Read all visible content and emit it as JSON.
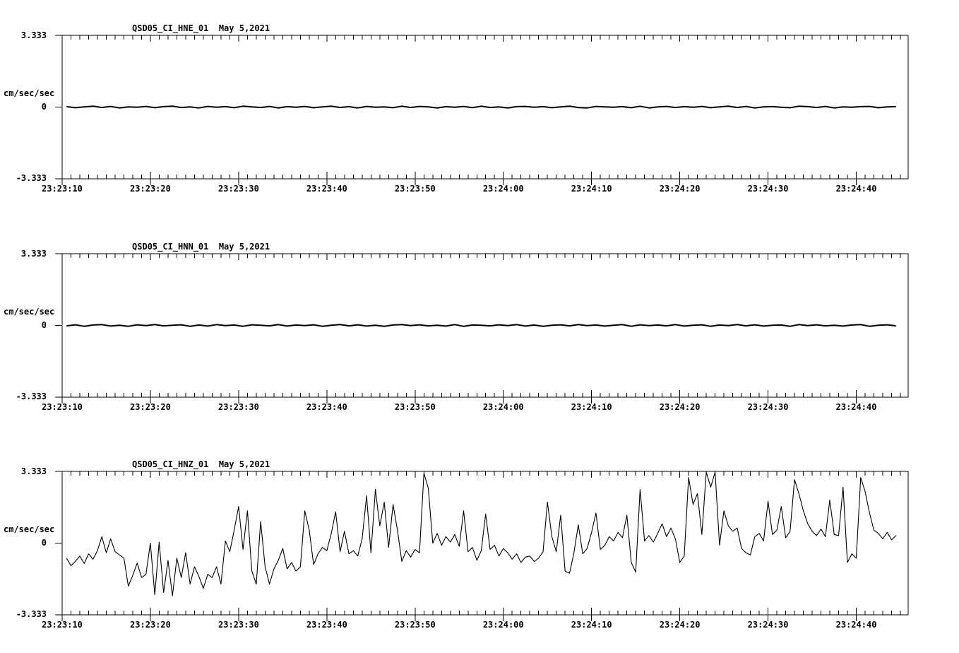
{
  "page": {
    "background": "#ffffff",
    "foreground": "#000000"
  },
  "chart_data": [
    {
      "type": "line",
      "title": "QSD05_CI_HNE_01  May 5,2021",
      "ylabel": "cm/sec/sec",
      "ylim": [
        -3.333,
        3.333
      ],
      "y_ticks": [
        {
          "value": 3.333,
          "label": "3.333"
        },
        {
          "value": 0,
          "label": "0"
        },
        {
          "value": -3.333,
          "label": "-3.333"
        }
      ],
      "xlim_seconds": [
        0,
        95.88
      ],
      "minor_tick_interval_sec": 1,
      "x_ticks": [
        {
          "s": 0,
          "label": "23:23:10"
        },
        {
          "s": 10,
          "label": "23:23:20"
        },
        {
          "s": 20,
          "label": "23:23:30"
        },
        {
          "s": 30,
          "label": "23:23:40"
        },
        {
          "s": 40,
          "label": "23:23:50"
        },
        {
          "s": 50,
          "label": "23:24:00"
        },
        {
          "s": 60,
          "label": "23:24:10"
        },
        {
          "s": 70,
          "label": "23:24:20"
        },
        {
          "s": 80,
          "label": "23:24:30"
        },
        {
          "s": 90,
          "label": "23:24:40"
        }
      ],
      "t_start_sec": 0.5,
      "sample_interval_sec": 1.0,
      "values": [
        0.02,
        -0.03,
        0.01,
        0.04,
        -0.02,
        0.03,
        -0.04,
        0.01,
        -0.01,
        0.03,
        -0.03,
        0.02,
        0.04,
        -0.02,
        0.01,
        -0.04,
        0.03,
        -0.01,
        0.02,
        -0.03,
        0.04,
        0.01,
        -0.02,
        0.03,
        -0.04,
        0.02,
        -0.01,
        0.03,
        -0.03,
        0.01,
        0.04,
        -0.02,
        0.02,
        -0.04,
        0.03,
        -0.01,
        0.01,
        -0.03,
        0.04,
        -0.02,
        0.03,
        0.01,
        -0.04,
        0.02,
        -0.01,
        0.03,
        -0.03,
        0.04,
        -0.02,
        0.01,
        -0.04,
        0.02,
        0.03,
        -0.01,
        0.02,
        -0.03,
        0.01,
        0.04,
        -0.02,
        -0.04,
        0.03,
        0.01,
        -0.01,
        0.02,
        -0.03,
        0.04,
        -0.04,
        0.01,
        0.03,
        -0.02,
        0.02,
        -0.01,
        0.03,
        -0.03,
        0.01,
        0.04,
        -0.02,
        0.03,
        -0.04,
        0.01,
        0.02,
        -0.01,
        -0.03,
        0.04,
        0.02,
        -0.02,
        0.03,
        -0.04,
        0.01,
        -0.01,
        0.02,
        0.03,
        -0.03,
        0.01,
        0.02
      ]
    },
    {
      "type": "line",
      "title": "QSD05_CI_HNN_01  May 5,2021",
      "ylabel": "cm/sec/sec",
      "ylim": [
        -3.333,
        3.333
      ],
      "y_ticks": [
        {
          "value": 3.333,
          "label": "3.333"
        },
        {
          "value": 0,
          "label": "0"
        },
        {
          "value": -3.333,
          "label": "-3.333"
        }
      ],
      "xlim_seconds": [
        0,
        95.88
      ],
      "minor_tick_interval_sec": 1,
      "x_ticks": [
        {
          "s": 0,
          "label": "23:23:10"
        },
        {
          "s": 10,
          "label": "23:23:20"
        },
        {
          "s": 20,
          "label": "23:23:30"
        },
        {
          "s": 30,
          "label": "23:23:40"
        },
        {
          "s": 40,
          "label": "23:23:50"
        },
        {
          "s": 50,
          "label": "23:24:00"
        },
        {
          "s": 60,
          "label": "23:24:10"
        },
        {
          "s": 70,
          "label": "23:24:20"
        },
        {
          "s": 80,
          "label": "23:24:30"
        },
        {
          "s": 90,
          "label": "23:24:40"
        }
      ],
      "t_start_sec": 0.5,
      "sample_interval_sec": 1.0,
      "values": [
        -0.02,
        0.03,
        -0.04,
        0.02,
        0.04,
        -0.03,
        0.01,
        -0.04,
        0.03,
        -0.01,
        0.04,
        -0.02,
        0.01,
        0.03,
        -0.04,
        0.02,
        -0.03,
        0.04,
        -0.01,
        0.02,
        -0.04,
        0.03,
        0.01,
        -0.02,
        0.04,
        -0.03,
        0.02,
        -0.01,
        0.03,
        -0.04,
        0.01,
        0.04,
        -0.02,
        0.03,
        -0.03,
        0.01,
        -0.04,
        0.02,
        0.04,
        -0.01,
        0.03,
        -0.02,
        0.01,
        -0.03,
        0.04,
        -0.04,
        0.02,
        0.01,
        -0.02,
        0.03,
        -0.01,
        0.04,
        -0.03,
        0.02,
        -0.04,
        0.01,
        0.03,
        -0.02,
        0.04,
        -0.01,
        0.02,
        -0.03,
        0.01,
        0.04,
        -0.04,
        0.03,
        -0.01,
        0.02,
        -0.02,
        0.04,
        -0.03,
        0.01,
        0.03,
        -0.04,
        0.02,
        -0.01,
        0.04,
        -0.02,
        0.03,
        -0.03,
        0.01,
        0.02,
        -0.04,
        0.04,
        -0.01,
        0.03,
        -0.02,
        0.01,
        -0.03,
        0.02,
        0.04,
        -0.04,
        0.01,
        0.03,
        -0.02
      ]
    },
    {
      "type": "line",
      "title": "QSD05_CI_HNZ_01  May 5,2021",
      "ylabel": "cm/sec/sec",
      "ylim": [
        -3.333,
        3.333
      ],
      "y_ticks": [
        {
          "value": 3.333,
          "label": "3.333"
        },
        {
          "value": 0,
          "label": "0"
        },
        {
          "value": -3.333,
          "label": "-3.333"
        }
      ],
      "xlim_seconds": [
        0,
        95.88
      ],
      "minor_tick_interval_sec": 1,
      "x_ticks": [
        {
          "s": 0,
          "label": "23:23:10"
        },
        {
          "s": 10,
          "label": "23:23:20"
        },
        {
          "s": 20,
          "label": "23:23:30"
        },
        {
          "s": 30,
          "label": "23:23:40"
        },
        {
          "s": 40,
          "label": "23:23:50"
        },
        {
          "s": 50,
          "label": "23:24:00"
        },
        {
          "s": 60,
          "label": "23:24:10"
        },
        {
          "s": 70,
          "label": "23:24:20"
        },
        {
          "s": 80,
          "label": "23:24:30"
        },
        {
          "s": 90,
          "label": "23:24:40"
        }
      ],
      "t_start_sec": 0.5,
      "sample_interval_sec": 0.5,
      "values": [
        -0.7,
        -1.05,
        -0.85,
        -0.6,
        -0.95,
        -0.5,
        -0.75,
        -0.35,
        0.3,
        -0.45,
        0.2,
        -0.4,
        -0.55,
        -0.7,
        -2.0,
        -1.5,
        -0.93,
        -1.6,
        -1.45,
        0.0,
        -2.4,
        0.05,
        -2.3,
        -0.8,
        -2.45,
        -0.7,
        -1.6,
        -0.45,
        -1.9,
        -1.1,
        -1.55,
        -2.1,
        -1.45,
        -1.6,
        -1.1,
        -1.9,
        0.1,
        -0.4,
        0.6,
        1.7,
        -0.3,
        1.5,
        -1.3,
        -1.9,
        1.0,
        -1.1,
        -1.9,
        -1.2,
        -0.8,
        -0.25,
        -1.2,
        -0.9,
        -1.3,
        -1.1,
        1.5,
        0.6,
        -1.0,
        -0.5,
        -0.2,
        -0.35,
        0.45,
        1.45,
        -0.4,
        0.55,
        -0.5,
        -0.35,
        -0.6,
        0.2,
        2.2,
        -0.45,
        2.5,
        0.8,
        1.9,
        -0.2,
        1.8,
        0.6,
        -0.85,
        -0.35,
        -0.65,
        -0.3,
        -0.45,
        3.25,
        2.55,
        0.0,
        0.45,
        -0.1,
        0.3,
        0.05,
        0.4,
        -0.15,
        1.5,
        -0.4,
        -0.2,
        -0.8,
        -0.35,
        1.35,
        -0.3,
        -0.1,
        -0.6,
        -0.25,
        -0.45,
        -0.75,
        -0.5,
        -0.9,
        -0.65,
        -0.6,
        -0.85,
        -0.7,
        -0.4,
        1.9,
        0.3,
        -0.4,
        1.3,
        -1.3,
        -1.4,
        -0.45,
        0.85,
        -0.5,
        -0.25,
        0.5,
        1.4,
        -0.3,
        -0.1,
        0.3,
        0.1,
        0.5,
        0.25,
        1.3,
        -0.9,
        -1.35,
        2.5,
        0.1,
        0.35,
        0.05,
        0.45,
        0.9,
        0.3,
        0.7,
        0.2,
        -0.9,
        -0.6,
        3.05,
        1.8,
        2.3,
        0.4,
        3.3,
        2.6,
        3.3,
        -0.1,
        1.5,
        0.8,
        0.55,
        0.7,
        -0.25,
        -0.45,
        -0.55,
        0.3,
        0.45,
        0.1,
        1.95,
        0.4,
        0.6,
        1.7,
        0.25,
        0.55,
        2.95,
        2.3,
        1.5,
        0.9,
        0.55,
        0.35,
        0.65,
        0.3,
        2.0,
        0.4,
        0.35,
        2.6,
        -0.9,
        -0.5,
        -0.7,
        3.05,
        2.4,
        1.4,
        0.6,
        0.45,
        0.2,
        0.5,
        0.15,
        0.35
      ]
    }
  ]
}
